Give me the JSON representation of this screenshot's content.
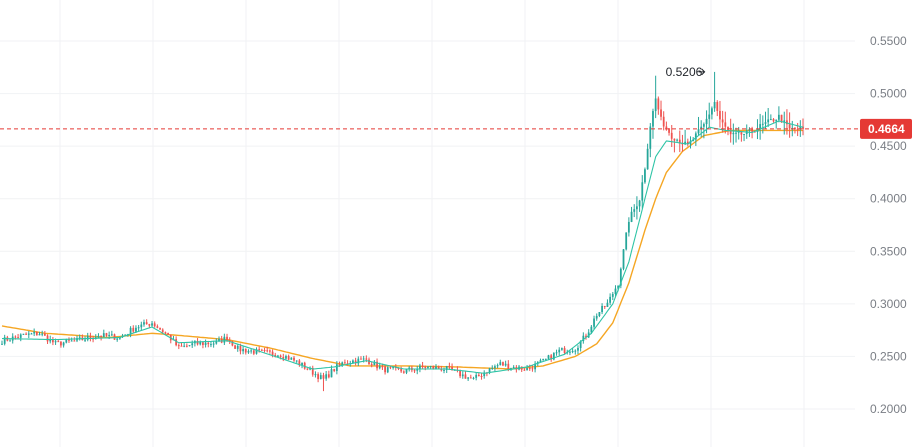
{
  "colors": {
    "up": "#26a69a",
    "down": "#ef5350",
    "ma_fast": "#2ec4a6",
    "ma_slow": "#f5a623",
    "price_line": "#e53935",
    "grid": "#f1f2f4"
  },
  "chart_data": {
    "type": "candlestick",
    "ylim": [
      0.195,
      0.56
    ],
    "y_ticks": [
      "0.5500",
      "0.5000",
      "0.4500",
      "0.4000",
      "0.3500",
      "0.3000",
      "0.2500",
      "0.2000"
    ],
    "y_tick_values": [
      0.55,
      0.5,
      0.45,
      0.4,
      0.35,
      0.3,
      0.25,
      0.2
    ],
    "grid": true,
    "current_price": 0.4664,
    "current_price_label": "0.4664",
    "peak_value": 0.5206,
    "peak_label": "0.5206",
    "close_keypoints": [
      [
        0,
        0.265
      ],
      [
        8,
        0.27
      ],
      [
        14,
        0.272
      ],
      [
        20,
        0.262
      ],
      [
        28,
        0.265
      ],
      [
        36,
        0.27
      ],
      [
        44,
        0.268
      ],
      [
        50,
        0.278
      ],
      [
        56,
        0.282
      ],
      [
        62,
        0.27
      ],
      [
        66,
        0.258
      ],
      [
        72,
        0.262
      ],
      [
        80,
        0.263
      ],
      [
        84,
        0.268
      ],
      [
        88,
        0.257
      ],
      [
        96,
        0.254
      ],
      [
        104,
        0.252
      ],
      [
        110,
        0.245
      ],
      [
        116,
        0.235
      ],
      [
        120,
        0.228
      ],
      [
        124,
        0.238
      ],
      [
        128,
        0.245
      ],
      [
        136,
        0.247
      ],
      [
        142,
        0.238
      ],
      [
        150,
        0.236
      ],
      [
        158,
        0.24
      ],
      [
        166,
        0.238
      ],
      [
        172,
        0.232
      ],
      [
        176,
        0.228
      ],
      [
        180,
        0.235
      ],
      [
        186,
        0.243
      ],
      [
        190,
        0.24
      ],
      [
        196,
        0.238
      ],
      [
        202,
        0.245
      ],
      [
        208,
        0.255
      ],
      [
        214,
        0.258
      ],
      [
        218,
        0.27
      ],
      [
        222,
        0.29
      ],
      [
        226,
        0.3
      ],
      [
        230,
        0.32
      ],
      [
        234,
        0.38
      ],
      [
        238,
        0.4
      ],
      [
        240,
        0.43
      ],
      [
        242,
        0.47
      ],
      [
        244,
        0.495
      ],
      [
        246,
        0.475
      ],
      [
        250,
        0.46
      ],
      [
        256,
        0.45
      ],
      [
        262,
        0.47
      ],
      [
        266,
        0.492
      ],
      [
        268,
        0.475
      ],
      [
        272,
        0.46
      ],
      [
        278,
        0.462
      ],
      [
        284,
        0.47
      ],
      [
        290,
        0.478
      ],
      [
        294,
        0.466
      ],
      [
        299,
        0.4664
      ]
    ],
    "ma_fast_keypoints": [
      [
        0,
        0.267
      ],
      [
        20,
        0.266
      ],
      [
        44,
        0.268
      ],
      [
        56,
        0.278
      ],
      [
        66,
        0.263
      ],
      [
        84,
        0.265
      ],
      [
        96,
        0.255
      ],
      [
        116,
        0.238
      ],
      [
        124,
        0.24
      ],
      [
        136,
        0.246
      ],
      [
        150,
        0.238
      ],
      [
        166,
        0.238
      ],
      [
        180,
        0.234
      ],
      [
        196,
        0.24
      ],
      [
        210,
        0.252
      ],
      [
        220,
        0.272
      ],
      [
        228,
        0.3
      ],
      [
        234,
        0.34
      ],
      [
        240,
        0.4
      ],
      [
        244,
        0.44
      ],
      [
        248,
        0.455
      ],
      [
        256,
        0.452
      ],
      [
        264,
        0.468
      ],
      [
        270,
        0.465
      ],
      [
        280,
        0.463
      ],
      [
        290,
        0.474
      ],
      [
        299,
        0.468
      ]
    ],
    "ma_slow_keypoints": [
      [
        0,
        0.279
      ],
      [
        16,
        0.272
      ],
      [
        40,
        0.268
      ],
      [
        56,
        0.272
      ],
      [
        66,
        0.27
      ],
      [
        84,
        0.266
      ],
      [
        100,
        0.258
      ],
      [
        116,
        0.248
      ],
      [
        130,
        0.241
      ],
      [
        150,
        0.241
      ],
      [
        170,
        0.24
      ],
      [
        190,
        0.238
      ],
      [
        202,
        0.241
      ],
      [
        214,
        0.25
      ],
      [
        222,
        0.262
      ],
      [
        228,
        0.282
      ],
      [
        234,
        0.32
      ],
      [
        240,
        0.37
      ],
      [
        244,
        0.4
      ],
      [
        248,
        0.425
      ],
      [
        254,
        0.445
      ],
      [
        262,
        0.46
      ],
      [
        272,
        0.465
      ],
      [
        284,
        0.465
      ],
      [
        299,
        0.465
      ]
    ]
  }
}
